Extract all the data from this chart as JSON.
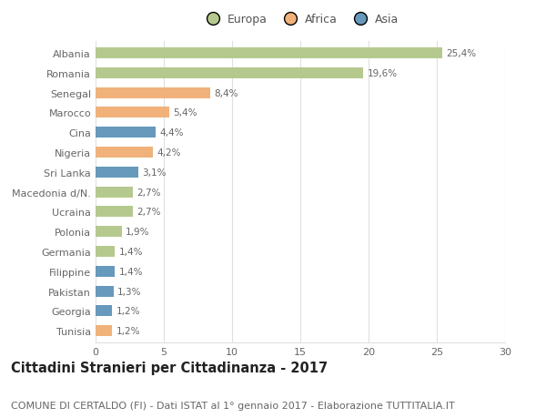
{
  "categories": [
    "Albania",
    "Romania",
    "Senegal",
    "Marocco",
    "Cina",
    "Nigeria",
    "Sri Lanka",
    "Macedonia d/N.",
    "Ucraina",
    "Polonia",
    "Germania",
    "Filippine",
    "Pakistan",
    "Georgia",
    "Tunisia"
  ],
  "values": [
    25.4,
    19.6,
    8.4,
    5.4,
    4.4,
    4.2,
    3.1,
    2.7,
    2.7,
    1.9,
    1.4,
    1.4,
    1.3,
    1.2,
    1.2
  ],
  "labels": [
    "25,4%",
    "19,6%",
    "8,4%",
    "5,4%",
    "4,4%",
    "4,2%",
    "3,1%",
    "2,7%",
    "2,7%",
    "1,9%",
    "1,4%",
    "1,4%",
    "1,3%",
    "1,2%",
    "1,2%"
  ],
  "continents": [
    "Europa",
    "Europa",
    "Africa",
    "Africa",
    "Asia",
    "Africa",
    "Asia",
    "Europa",
    "Europa",
    "Europa",
    "Europa",
    "Asia",
    "Asia",
    "Asia",
    "Africa"
  ],
  "colors": {
    "Europa": "#b5c98e",
    "Africa": "#f0b27a",
    "Asia": "#6699bb"
  },
  "xlim": [
    0,
    30
  ],
  "xticks": [
    0,
    5,
    10,
    15,
    20,
    25,
    30
  ],
  "title": "Cittadini Stranieri per Cittadinanza - 2017",
  "subtitle": "COMUNE DI CERTALDO (FI) - Dati ISTAT al 1° gennaio 2017 - Elaborazione TUTTITALIA.IT",
  "background_color": "#ffffff",
  "grid_color": "#e0e0e0",
  "bar_height": 0.55,
  "title_fontsize": 10.5,
  "subtitle_fontsize": 8,
  "label_fontsize": 7.5,
  "tick_fontsize": 8,
  "legend_fontsize": 9
}
